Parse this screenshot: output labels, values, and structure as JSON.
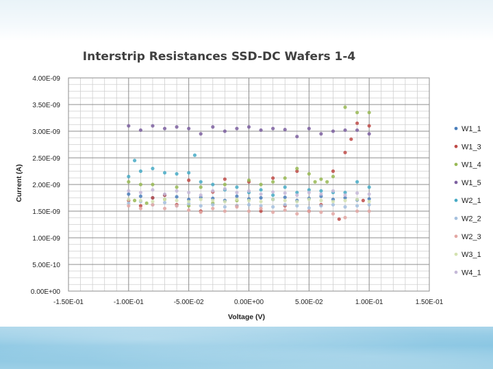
{
  "chart_data": {
    "type": "scatter",
    "title": "Interstrip Resistances SSD-DC Wafers 1-4",
    "xlabel": "Voltage (V)",
    "ylabel": "Current (A)",
    "xlim": [
      -0.15,
      0.15
    ],
    "ylim": [
      0,
      4e-09
    ],
    "x_ticks": [
      -0.15,
      -0.1,
      -0.05,
      0,
      0.05,
      0.1,
      0.15
    ],
    "x_tick_labels": [
      "-1.50E-01",
      "-1.00E-01",
      "-5.00E-02",
      "0.00E+00",
      "5.00E-02",
      "1.00E-01",
      "1.50E-01"
    ],
    "y_ticks": [
      0,
      5e-10,
      1e-09,
      1.5e-09,
      2e-09,
      2.5e-09,
      3e-09,
      3.5e-09,
      4e-09
    ],
    "y_tick_labels": [
      "0.00E+00",
      "5.00E-10",
      "1.00E-09",
      "1.50E-09",
      "2.00E-09",
      "2.50E-09",
      "3.00E-09",
      "3.50E-09",
      "4.00E-09"
    ],
    "grid": true,
    "legend_position": "right",
    "series": [
      {
        "name": "W1_1",
        "color": "#4a7ebb",
        "x": [
          -0.1,
          -0.09,
          -0.08,
          -0.07,
          -0.06,
          -0.05,
          -0.04,
          -0.03,
          -0.02,
          -0.01,
          0,
          0.01,
          0.02,
          0.03,
          0.04,
          0.05,
          0.06,
          0.07,
          0.08,
          0.09,
          0.1
        ],
        "y": [
          1.82e-09,
          1.78e-09,
          1.75e-09,
          1.8e-09,
          1.77e-09,
          1.72e-09,
          1.76e-09,
          1.74e-09,
          1.7e-09,
          1.78e-09,
          1.73e-09,
          1.75e-09,
          1.72e-09,
          1.76e-09,
          1.7e-09,
          1.74e-09,
          1.78e-09,
          1.72e-09,
          1.75e-09,
          1.71e-09,
          1.73e-09
        ]
      },
      {
        "name": "W1_3",
        "color": "#be4b48",
        "x": [
          -0.1,
          -0.09,
          -0.08,
          -0.07,
          -0.06,
          -0.05,
          -0.04,
          -0.03,
          -0.02,
          -0.01,
          0,
          0.01,
          0.02,
          0.03,
          0.04,
          0.05,
          0.06,
          0.07,
          0.075,
          0.08,
          0.085,
          0.09,
          0.095,
          0.1
        ],
        "y": [
          1.7e-09,
          1.6e-09,
          1.75e-09,
          1.8e-09,
          1.62e-09,
          2.08e-09,
          1.5e-09,
          1.86e-09,
          2.1e-09,
          1.6e-09,
          2.05e-09,
          1.5e-09,
          2.12e-09,
          1.6e-09,
          2.25e-09,
          1.5e-09,
          1.62e-09,
          2.25e-09,
          1.35e-09,
          2.6e-09,
          2.85e-09,
          3.15e-09,
          1.7e-09,
          3.1e-09
        ]
      },
      {
        "name": "W1_4",
        "color": "#98b954",
        "x": [
          -0.1,
          -0.095,
          -0.09,
          -0.085,
          -0.08,
          -0.07,
          -0.06,
          -0.05,
          -0.04,
          -0.03,
          -0.02,
          -0.01,
          0,
          0.01,
          0.02,
          0.03,
          0.04,
          0.05,
          0.055,
          0.06,
          0.065,
          0.07,
          0.08,
          0.09,
          0.1
        ],
        "y": [
          2.05e-09,
          1.7e-09,
          2e-09,
          1.65e-09,
          2e-09,
          1.72e-09,
          1.95e-09,
          1.6e-09,
          1.95e-09,
          1.65e-09,
          2e-09,
          1.7e-09,
          2.08e-09,
          2e-09,
          2.05e-09,
          2.12e-09,
          2.3e-09,
          2.2e-09,
          2.05e-09,
          2.1e-09,
          2.05e-09,
          2.15e-09,
          3.45e-09,
          3.35e-09,
          3.35e-09
        ]
      },
      {
        "name": "W1_5",
        "color": "#7d60a0",
        "x": [
          -0.1,
          -0.09,
          -0.08,
          -0.07,
          -0.06,
          -0.05,
          -0.04,
          -0.03,
          -0.02,
          -0.01,
          0,
          0.01,
          0.02,
          0.03,
          0.04,
          0.05,
          0.06,
          0.07,
          0.08,
          0.09,
          0.1
        ],
        "y": [
          3.1e-09,
          3.02e-09,
          3.1e-09,
          3.05e-09,
          3.08e-09,
          3.05e-09,
          2.95e-09,
          3.08e-09,
          3e-09,
          3.05e-09,
          3.08e-09,
          3.02e-09,
          3.05e-09,
          3.03e-09,
          2.9e-09,
          3.05e-09,
          2.95e-09,
          3e-09,
          3.02e-09,
          3.02e-09,
          2.95e-09
        ]
      },
      {
        "name": "W2_1",
        "color": "#46aac5",
        "x": [
          -0.1,
          -0.095,
          -0.09,
          -0.08,
          -0.07,
          -0.06,
          -0.05,
          -0.045,
          -0.04,
          -0.03,
          -0.02,
          -0.01,
          0,
          0.01,
          0.02,
          0.03,
          0.04,
          0.05,
          0.06,
          0.07,
          0.08,
          0.09,
          0.1
        ],
        "y": [
          2.15e-09,
          2.45e-09,
          2.25e-09,
          2.3e-09,
          2.22e-09,
          2.2e-09,
          2.22e-09,
          2.55e-09,
          2.05e-09,
          2e-09,
          1.9e-09,
          1.95e-09,
          1.85e-09,
          1.9e-09,
          1.8e-09,
          1.95e-09,
          1.85e-09,
          1.9e-09,
          1.88e-09,
          1.85e-09,
          1.85e-09,
          2.05e-09,
          1.95e-09
        ]
      },
      {
        "name": "W2_2",
        "color": "#a5c0de",
        "x": [
          -0.1,
          -0.09,
          -0.08,
          -0.07,
          -0.06,
          -0.05,
          -0.04,
          -0.03,
          -0.02,
          -0.01,
          0,
          0.01,
          0.02,
          0.03,
          0.04,
          0.05,
          0.06,
          0.07,
          0.08,
          0.09,
          0.1
        ],
        "y": [
          1.65e-09,
          1.68e-09,
          1.62e-09,
          1.66e-09,
          1.6e-09,
          1.64e-09,
          1.6e-09,
          1.62e-09,
          1.58e-09,
          1.6e-09,
          1.62e-09,
          1.6e-09,
          1.58e-09,
          1.62e-09,
          1.6e-09,
          1.56e-09,
          1.6e-09,
          1.62e-09,
          1.58e-09,
          1.6e-09,
          1.62e-09
        ]
      },
      {
        "name": "W2_3",
        "color": "#e3a7a3",
        "x": [
          -0.1,
          -0.09,
          -0.08,
          -0.07,
          -0.06,
          -0.05,
          -0.04,
          -0.03,
          -0.02,
          -0.01,
          0,
          0.01,
          0.02,
          0.03,
          0.04,
          0.05,
          0.06,
          0.07,
          0.08,
          0.09,
          0.1
        ],
        "y": [
          1.6e-09,
          1.55e-09,
          1.62e-09,
          1.55e-09,
          1.6e-09,
          1.52e-09,
          1.48e-09,
          1.55e-09,
          1.5e-09,
          1.58e-09,
          1.5e-09,
          1.55e-09,
          1.48e-09,
          1.52e-09,
          1.45e-09,
          1.5e-09,
          1.48e-09,
          1.45e-09,
          1.38e-09,
          1.5e-09,
          1.5e-09
        ]
      },
      {
        "name": "W3_1",
        "color": "#d4e2b0",
        "x": [
          -0.1,
          -0.09,
          -0.08,
          -0.07,
          -0.06,
          -0.05,
          -0.04,
          -0.03,
          -0.02,
          -0.01,
          0,
          0.01,
          0.02,
          0.03,
          0.04,
          0.05,
          0.06,
          0.07,
          0.08,
          0.09,
          0.1
        ],
        "y": [
          1.72e-09,
          1.7e-09,
          1.68e-09,
          1.72e-09,
          1.7e-09,
          1.68e-09,
          1.72e-09,
          1.7e-09,
          1.68e-09,
          1.72e-09,
          1.7e-09,
          1.68e-09,
          1.72e-09,
          1.7e-09,
          1.68e-09,
          1.72e-09,
          1.7e-09,
          1.68e-09,
          1.7e-09,
          1.72e-09,
          1.68e-09
        ]
      },
      {
        "name": "W4_1",
        "color": "#c5b9d8",
        "x": [
          -0.1,
          -0.09,
          -0.08,
          -0.07,
          -0.06,
          -0.05,
          -0.04,
          -0.03,
          -0.02,
          -0.01,
          0,
          0.01,
          0.02,
          0.03,
          0.04,
          0.05,
          0.06,
          0.07,
          0.08,
          0.09,
          0.1
        ],
        "y": [
          1.88e-09,
          1.85e-09,
          1.9e-09,
          1.82e-09,
          1.88e-09,
          1.85e-09,
          1.8e-09,
          1.88e-09,
          1.92e-09,
          1.85e-09,
          1.88e-09,
          1.82e-09,
          1.86e-09,
          1.84e-09,
          1.8e-09,
          1.85e-09,
          1.82e-09,
          1.88e-09,
          1.8e-09,
          1.84e-09,
          1.82e-09
        ]
      }
    ]
  }
}
